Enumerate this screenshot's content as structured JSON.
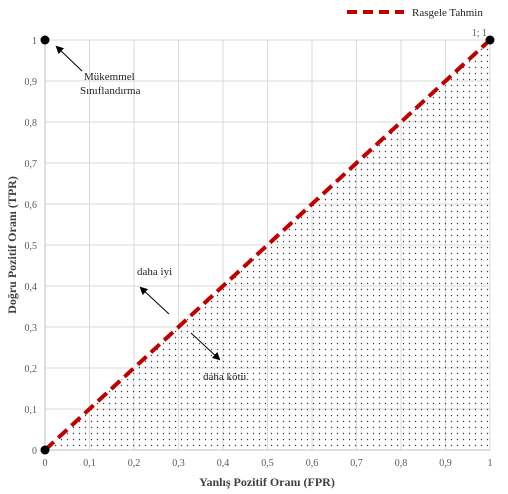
{
  "colors": {
    "random_line": "#c00000",
    "grid": "#d9d9d9",
    "point": "#000000",
    "dots": "#404040"
  },
  "chart_data": {
    "type": "line",
    "xlabel": "Yanlış Pozitif Oranı (FPR)",
    "ylabel": "Doğru Pozitif Oranı (TPR)",
    "xlim": [
      0,
      1
    ],
    "ylim": [
      0,
      1
    ],
    "grid": true,
    "legend_position": "top-right",
    "xticks": [
      "0",
      "0,1",
      "0,2",
      "0,3",
      "0,4",
      "0,5",
      "0,6",
      "0,7",
      "0,8",
      "0,9",
      "1"
    ],
    "yticks": [
      "0",
      "0,1",
      "0,2",
      "0,3",
      "0,4",
      "0,5",
      "0,6",
      "0,7",
      "0,8",
      "0,9",
      "1"
    ],
    "series": [
      {
        "name": "Rasgele Tahmin",
        "x": [
          0,
          1
        ],
        "y": [
          0,
          1
        ],
        "style": "dashed"
      }
    ],
    "points": [
      {
        "x": 0,
        "y": 0,
        "label": ""
      },
      {
        "x": 0,
        "y": 1,
        "label": ""
      },
      {
        "x": 1,
        "y": 1,
        "label": "1; 1"
      }
    ],
    "shaded_region": "below diagonal (dotted)",
    "annotations": {
      "perfect": "Mükemmel\nSınıflandırma",
      "better": "daha iyi",
      "worse": "daha kötü"
    }
  }
}
